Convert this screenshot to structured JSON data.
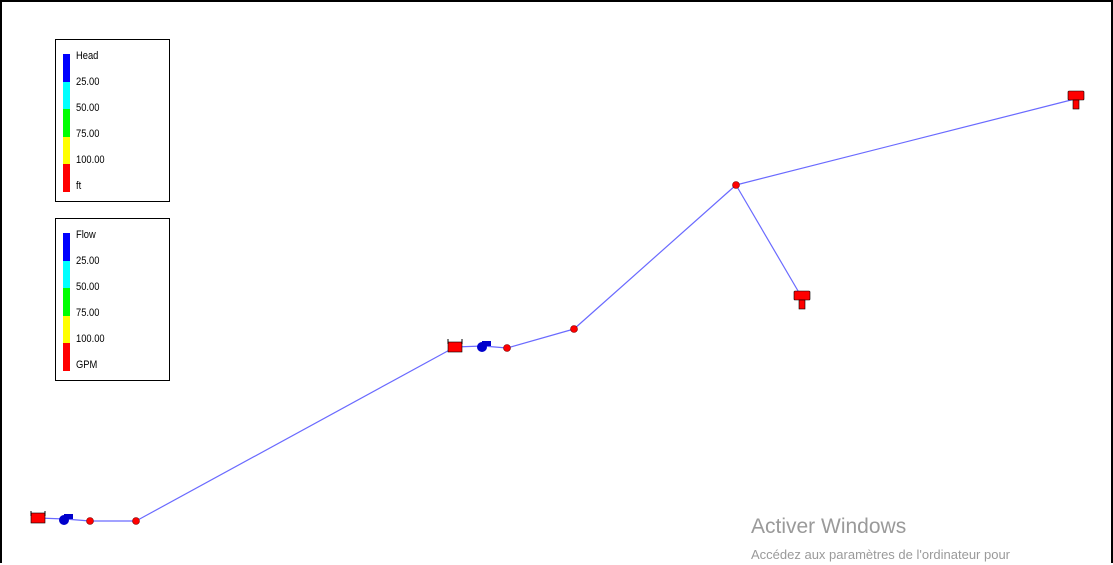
{
  "head_legend": {
    "title": "Head",
    "values": [
      "25.00",
      "50.00",
      "75.00",
      "100.00"
    ],
    "unit": "ft",
    "colors": [
      "#0000ff",
      "#00ffff",
      "#00ff00",
      "#ffff00",
      "#ff0000"
    ]
  },
  "flow_legend": {
    "title": "Flow",
    "values": [
      "25.00",
      "50.00",
      "75.00",
      "100.00"
    ],
    "unit": "GPM",
    "colors": [
      "#0000ff",
      "#00ffff",
      "#00ff00",
      "#ffff00",
      "#ff0000"
    ]
  },
  "network": {
    "link_color": "#6a6aff",
    "node_color": "#ff0000",
    "pump_color": "#0000cc",
    "nodes": [
      {
        "id": "reservoir-1",
        "type": "reservoir"
      },
      {
        "id": "pump-1",
        "type": "pump"
      },
      {
        "id": "junction-1",
        "type": "junction"
      },
      {
        "id": "junction-2",
        "type": "junction"
      },
      {
        "id": "reservoir-2",
        "type": "reservoir"
      },
      {
        "id": "pump-2",
        "type": "pump"
      },
      {
        "id": "junction-3",
        "type": "junction"
      },
      {
        "id": "junction-4",
        "type": "junction"
      },
      {
        "id": "junction-5",
        "type": "junction"
      },
      {
        "id": "tank-1",
        "type": "tank"
      },
      {
        "id": "tank-2",
        "type": "tank"
      }
    ]
  },
  "watermark": {
    "title": "Activer Windows",
    "subtitle": "Accédez aux paramètres de l'ordinateur pour"
  }
}
